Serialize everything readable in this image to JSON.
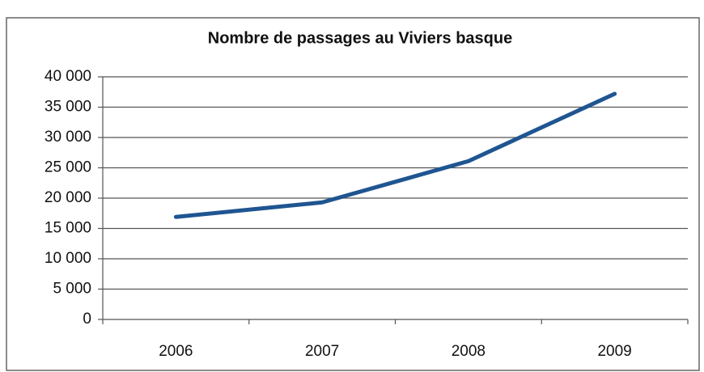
{
  "chart_data": {
    "type": "line",
    "title": "Nombre de passages au Viviers basque",
    "categories": [
      "2006",
      "2007",
      "2008",
      "2009"
    ],
    "series": [
      {
        "name": "Nombre de passages",
        "color": "#1f5591",
        "values": [
          16900,
          19300,
          26100,
          37200
        ]
      }
    ],
    "ylim": [
      0,
      40000
    ],
    "yticks": [
      0,
      {
        "value": 5000,
        "label": "5 000"
      },
      {
        "value": 10000,
        "label": "10 000"
      },
      {
        "value": 15000,
        "label": "15 000"
      },
      {
        "value": 20000,
        "label": "20 000"
      },
      {
        "value": 25000,
        "label": "25 000"
      },
      {
        "value": 30000,
        "label": "30 000"
      },
      {
        "value": 35000,
        "label": "35 000"
      },
      {
        "value": 40000,
        "label": "40 000"
      }
    ],
    "grid": true,
    "legend": false
  }
}
